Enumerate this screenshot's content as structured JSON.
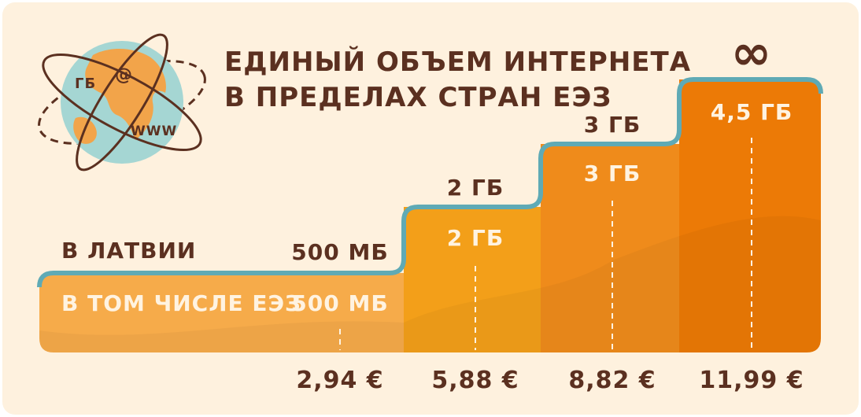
{
  "title_line1": "ЕДИНЫЙ ОБЪЕМ ИНТЕРНЕТА",
  "title_line2": "В ПРЕДЕЛАХ СТРАН ЕЭЗ",
  "globe": {
    "label_gb": "ГБ",
    "label_at": "@",
    "label_www": "WWW"
  },
  "row_labels": {
    "latvia": "В ЛАТВИИ",
    "eea": "В ТОМ ЧИСЛЕ ЕЭЗ"
  },
  "colors": {
    "background": "#fef1de",
    "text_dark": "#5b3020",
    "outline": "#5faab5",
    "step_colors": [
      "#f6ab4a",
      "#f39f19",
      "#ef8b1b",
      "#ec7a06"
    ],
    "globe_sea": "#a5d6d3",
    "globe_land": "#f2a44a"
  },
  "chart_data": {
    "type": "bar",
    "title": "ЕДИНЫЙ ОБЪЕМ ИНТЕРНЕТА В ПРЕДЕЛАХ СТРАН ЕЭЗ",
    "categories": [
      "2,94 €",
      "5,88 €",
      "8,82 €",
      "11,99 €"
    ],
    "series": [
      {
        "name": "В ЛАТВИИ",
        "labels": [
          "500 МБ",
          "2 ГБ",
          "3 ГБ",
          "∞"
        ],
        "values_gb": [
          0.5,
          2,
          3,
          null
        ]
      },
      {
        "name": "В ТОМ ЧИСЛЕ ЕЭЗ",
        "labels": [
          "500 МБ",
          "2 ГБ",
          "3 ГБ",
          "4,5 ГБ"
        ],
        "values_gb": [
          0.5,
          2,
          3,
          4.5
        ]
      }
    ],
    "xlabel": "",
    "ylabel": "",
    "grid": false,
    "legend": "left"
  }
}
